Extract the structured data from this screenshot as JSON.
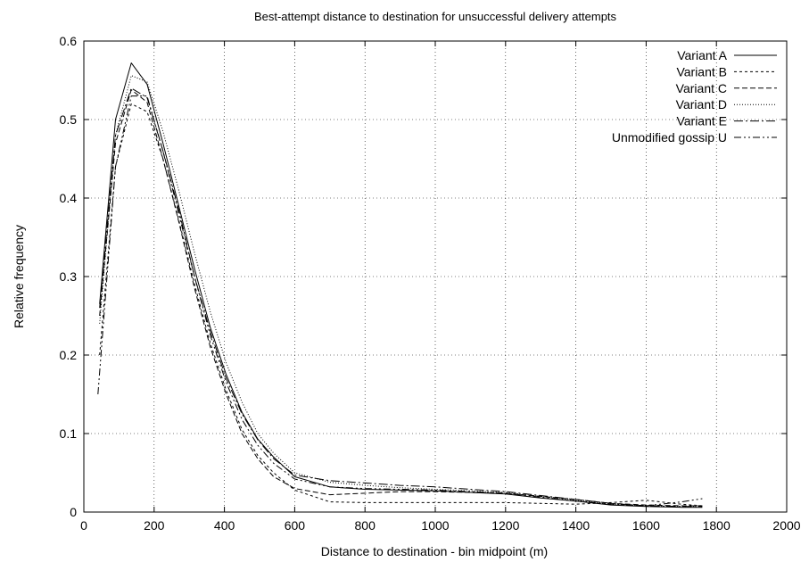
{
  "chart_data": {
    "type": "line",
    "title": "Best-attempt distance to destination for unsuccessful delivery attempts",
    "xlabel": "Distance to destination - bin midpoint (m)",
    "ylabel": "Relative frequency",
    "xlim": [
      0,
      2000
    ],
    "ylim": [
      0,
      0.6
    ],
    "xticks": [
      "0",
      "200",
      "400",
      "600",
      "800",
      "1000",
      "1200",
      "1400",
      "1600",
      "1800",
      "2000"
    ],
    "yticks": [
      "0",
      "0.1",
      "0.2",
      "0.3",
      "0.4",
      "0.5",
      "0.6"
    ],
    "grid": true,
    "legend_position": "top-right",
    "series": [
      {
        "name": "Variant A",
        "dash": "solid",
        "x": [
          45,
          90,
          135,
          180,
          225,
          270,
          315,
          360,
          405,
          450,
          495,
          540,
          600,
          700,
          800,
          900,
          1000,
          1100,
          1200,
          1300,
          1400,
          1500,
          1600,
          1700,
          1760
        ],
        "y": [
          0.265,
          0.5,
          0.572,
          0.545,
          0.47,
          0.39,
          0.31,
          0.235,
          0.175,
          0.127,
          0.093,
          0.07,
          0.045,
          0.032,
          0.029,
          0.028,
          0.027,
          0.025,
          0.023,
          0.018,
          0.014,
          0.009,
          0.007,
          0.006,
          0.006
        ]
      },
      {
        "name": "Variant B",
        "dash": "3,3",
        "x": [
          45,
          90,
          135,
          180,
          225,
          270,
          315,
          360,
          405,
          450,
          495,
          540,
          600,
          700,
          800,
          900,
          1000,
          1100,
          1200,
          1300,
          1400,
          1500,
          1600,
          1700,
          1760
        ],
        "y": [
          0.2,
          0.44,
          0.52,
          0.51,
          0.45,
          0.372,
          0.29,
          0.215,
          0.155,
          0.105,
          0.072,
          0.05,
          0.028,
          0.013,
          0.012,
          0.012,
          0.012,
          0.012,
          0.012,
          0.011,
          0.01,
          0.012,
          0.015,
          0.01,
          0.008
        ]
      },
      {
        "name": "Variant C",
        "dash": "6,3",
        "x": [
          45,
          90,
          135,
          180,
          225,
          270,
          315,
          360,
          405,
          450,
          495,
          540,
          600,
          700,
          800,
          900,
          1000,
          1100,
          1200,
          1300,
          1400,
          1500,
          1600,
          1700,
          1760
        ],
        "y": [
          0.25,
          0.47,
          0.538,
          0.522,
          0.45,
          0.37,
          0.285,
          0.21,
          0.15,
          0.1,
          0.068,
          0.045,
          0.03,
          0.022,
          0.024,
          0.026,
          0.026,
          0.025,
          0.024,
          0.02,
          0.016,
          0.011,
          0.009,
          0.008,
          0.008
        ]
      },
      {
        "name": "Variant D",
        "dash": "1,2",
        "x": [
          45,
          90,
          135,
          180,
          225,
          270,
          315,
          360,
          405,
          450,
          495,
          540,
          600,
          700,
          800,
          900,
          1000,
          1100,
          1200,
          1300,
          1400,
          1500,
          1600,
          1700,
          1760
        ],
        "y": [
          0.24,
          0.48,
          0.556,
          0.548,
          0.485,
          0.41,
          0.33,
          0.255,
          0.19,
          0.14,
          0.1,
          0.075,
          0.05,
          0.038,
          0.034,
          0.031,
          0.029,
          0.027,
          0.025,
          0.02,
          0.015,
          0.01,
          0.008,
          0.007,
          0.007
        ]
      },
      {
        "name": "Variant E",
        "dash": "10,3,2,3",
        "x": [
          45,
          90,
          135,
          180,
          225,
          270,
          315,
          360,
          405,
          450,
          495,
          540,
          600,
          700,
          800,
          900,
          1000,
          1100,
          1200,
          1300,
          1400,
          1500,
          1600,
          1700,
          1760
        ],
        "y": [
          0.26,
          0.48,
          0.54,
          0.528,
          0.46,
          0.385,
          0.3,
          0.23,
          0.17,
          0.125,
          0.092,
          0.068,
          0.047,
          0.04,
          0.037,
          0.034,
          0.032,
          0.029,
          0.026,
          0.021,
          0.016,
          0.011,
          0.008,
          0.007,
          0.007
        ]
      },
      {
        "name": "Unmodified gossip U",
        "dash": "8,3,2,3,2,3",
        "x": [
          40,
          90,
          135,
          180,
          225,
          270,
          315,
          360,
          405,
          450,
          495,
          540,
          600,
          700,
          800,
          900,
          1000,
          1100,
          1200,
          1300,
          1400,
          1500,
          1600,
          1700,
          1760
        ],
        "y": [
          0.15,
          0.44,
          0.53,
          0.53,
          0.46,
          0.38,
          0.3,
          0.225,
          0.165,
          0.118,
          0.085,
          0.062,
          0.042,
          0.032,
          0.03,
          0.029,
          0.028,
          0.026,
          0.024,
          0.019,
          0.014,
          0.01,
          0.008,
          0.013,
          0.017
        ]
      }
    ]
  }
}
